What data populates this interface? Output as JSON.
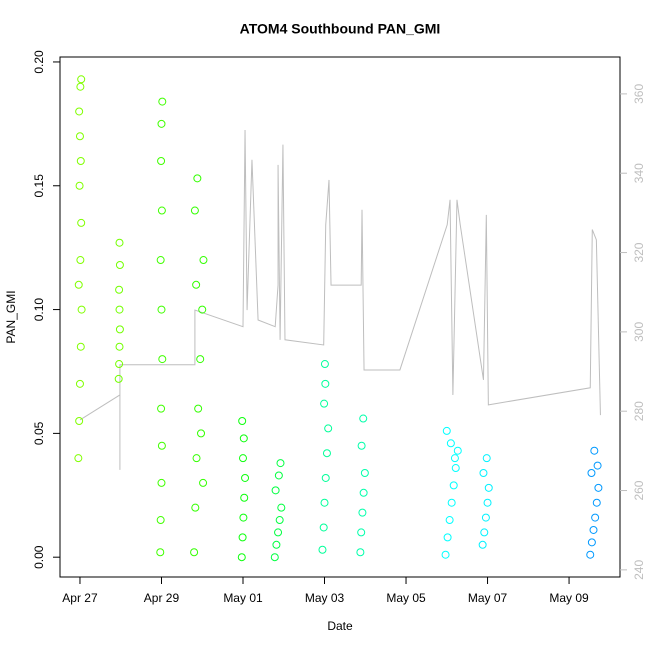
{
  "chart_data": {
    "type": "scatter",
    "title": "ATOM4 Southbound PAN_GMI",
    "xlabel": "Date",
    "ylabel": "PAN_GMI",
    "xlim": [
      -0.49,
      13.25
    ],
    "ylim": [
      -0.008,
      0.202
    ],
    "y2lim": [
      238.2,
      369.3
    ],
    "xticks": [
      {
        "value": 0,
        "label": "Apr 27"
      },
      {
        "value": 2,
        "label": "Apr 29"
      },
      {
        "value": 4,
        "label": "May 01"
      },
      {
        "value": 6,
        "label": "May 03"
      },
      {
        "value": 8,
        "label": "May 05"
      },
      {
        "value": 10,
        "label": "May 07"
      },
      {
        "value": 12,
        "label": "May 09"
      }
    ],
    "yticks": [
      {
        "value": 0,
        "label": "0.00"
      },
      {
        "value": 0.05,
        "label": "0.05"
      },
      {
        "value": 0.1,
        "label": "0.10"
      },
      {
        "value": 0.15,
        "label": "0.15"
      },
      {
        "value": 0.2,
        "label": "0.20"
      }
    ],
    "y2ticks": [
      240,
      260,
      280,
      300,
      320,
      340,
      360
    ],
    "series": [
      {
        "type": "line",
        "axis": "y2",
        "color": "#bebebe",
        "x": [
          0,
          0.98,
          0.98,
          0.98,
          1.96,
          2.82,
          2.82,
          4.0,
          4.05,
          4.1,
          4.22,
          4.37,
          4.79,
          4.86,
          4.86,
          4.91,
          4.98,
          5.03,
          5.98,
          6.03,
          6.11,
          6.16,
          6.9,
          6.92,
          6.97,
          7.85,
          9.01,
          9.08,
          9.15,
          9.25,
          9.33,
          9.9,
          9.97,
          10.02,
          12.52,
          12.57,
          12.67,
          12.77
        ],
        "values": [
          277.8,
          284.1,
          265.2,
          291.7,
          291.7,
          291.7,
          305.5,
          301.3,
          350.9,
          305.5,
          343.4,
          303,
          301.3,
          311.8,
          342.1,
          298,
          347.2,
          298,
          296.7,
          327,
          338.3,
          311.8,
          311.8,
          330.8,
          290.4,
          290.4,
          327,
          333.3,
          284.1,
          333.3,
          327,
          287.9,
          329.5,
          281.6,
          285.9,
          325.8,
          323.2,
          279
        ]
      },
      {
        "color": "#80ff00",
        "x": [
          -0.04,
          -0.02,
          0,
          0.02,
          0.04,
          -0.03,
          0.01,
          0.03,
          -0.01,
          0.02,
          0,
          -0.02,
          0.01,
          0.03
        ],
        "values": [
          0.04,
          0.055,
          0.07,
          0.085,
          0.1,
          0.11,
          0.12,
          0.135,
          0.15,
          0.16,
          0.17,
          0.18,
          0.19,
          0.193
        ]
      },
      {
        "color": "#73ff00",
        "x": [
          0.95,
          0.96,
          0.97,
          0.98,
          0.97,
          0.96,
          0.98,
          0.97
        ],
        "values": [
          0.072,
          0.078,
          0.085,
          0.092,
          0.1,
          0.108,
          0.118,
          0.127
        ]
      },
      {
        "color": "#40ff00",
        "x": [
          1.97,
          1.98,
          2.0,
          2.01,
          1.99,
          2.02,
          2.0,
          1.98,
          2.01,
          1.99,
          2.0,
          2.02
        ],
        "values": [
          0.002,
          0.015,
          0.03,
          0.045,
          0.06,
          0.08,
          0.1,
          0.12,
          0.14,
          0.16,
          0.175,
          0.184
        ]
      },
      {
        "color": "#33ff00",
        "x": [
          2.8,
          2.83,
          2.86,
          2.9,
          2.95,
          3.0,
          3.03,
          2.82,
          2.88,
          2.97,
          3.02,
          2.85
        ],
        "values": [
          0.002,
          0.02,
          0.04,
          0.06,
          0.08,
          0.1,
          0.12,
          0.14,
          0.153,
          0.05,
          0.03,
          0.11
        ]
      },
      {
        "color": "#0dff0d",
        "x": [
          3.97,
          3.99,
          4.01,
          4.03,
          4.05,
          4.0,
          4.02,
          3.98
        ],
        "values": [
          0,
          0.008,
          0.016,
          0.024,
          0.032,
          0.04,
          0.048,
          0.055
        ]
      },
      {
        "color": "#00ff40",
        "x": [
          4.78,
          4.82,
          4.86,
          4.9,
          4.94,
          4.8,
          4.88,
          4.92
        ],
        "values": [
          0,
          0.005,
          0.01,
          0.015,
          0.02,
          0.027,
          0.033,
          0.038
        ]
      },
      {
        "color": "#00ff99",
        "x": [
          5.95,
          5.98,
          6.0,
          6.03,
          6.06,
          6.09,
          5.99,
          6.02,
          6.01
        ],
        "values": [
          0.003,
          0.012,
          0.022,
          0.032,
          0.042,
          0.052,
          0.062,
          0.07,
          0.078
        ]
      },
      {
        "color": "#00ffaa",
        "x": [
          6.88,
          6.9,
          6.93,
          6.96,
          6.99,
          6.91,
          6.95
        ],
        "values": [
          0.002,
          0.01,
          0.018,
          0.026,
          0.034,
          0.045,
          0.056
        ]
      },
      {
        "color": "#00ffff",
        "x": [
          8.97,
          9.02,
          9.07,
          9.12,
          9.17,
          9.22,
          9.27,
          9.0,
          9.1,
          9.2
        ],
        "values": [
          0.001,
          0.008,
          0.015,
          0.022,
          0.029,
          0.036,
          0.043,
          0.051,
          0.046,
          0.04
        ]
      },
      {
        "color": "#00f2ff",
        "x": [
          9.88,
          9.92,
          9.96,
          10.0,
          10.03,
          9.9,
          9.98
        ],
        "values": [
          0.005,
          0.01,
          0.016,
          0.022,
          0.028,
          0.034,
          0.04
        ]
      },
      {
        "color": "#0099ff",
        "x": [
          12.52,
          12.56,
          12.6,
          12.64,
          12.68,
          12.72,
          12.55,
          12.62,
          12.7
        ],
        "values": [
          0.001,
          0.006,
          0.011,
          0.016,
          0.022,
          0.028,
          0.034,
          0.043,
          0.037
        ]
      }
    ]
  }
}
